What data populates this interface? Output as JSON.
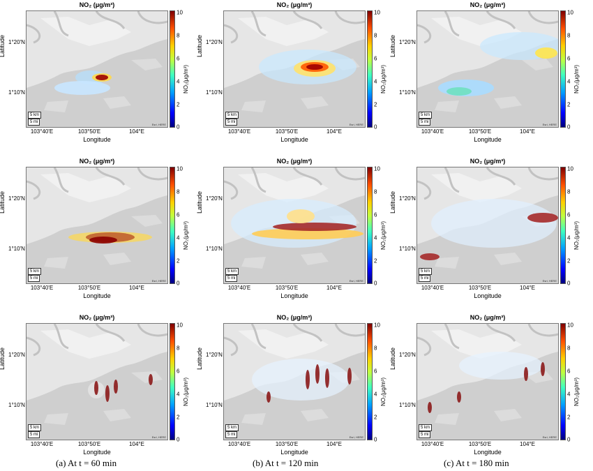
{
  "panel_title": "NO₂ (μg/m³)",
  "y_axis_label": "Latitude",
  "x_axis_label": "Longitude",
  "y_ticks": [
    "1°20'N",
    "1°10'N"
  ],
  "x_ticks": [
    "103°40'E",
    "103°50'E",
    "104°E"
  ],
  "colorbar_label": "NO₂(μg/m³)",
  "colorbar_ticks": [
    "10",
    "8",
    "6",
    "4",
    "2",
    "0"
  ],
  "scale_km": "5 km",
  "scale_mi": "5 mi",
  "attribution": "Esri, HERE",
  "captions": [
    "(a)  At t = 60 min",
    "(b)  At t = 120 min",
    "(c)  At t = 180 min"
  ]
}
